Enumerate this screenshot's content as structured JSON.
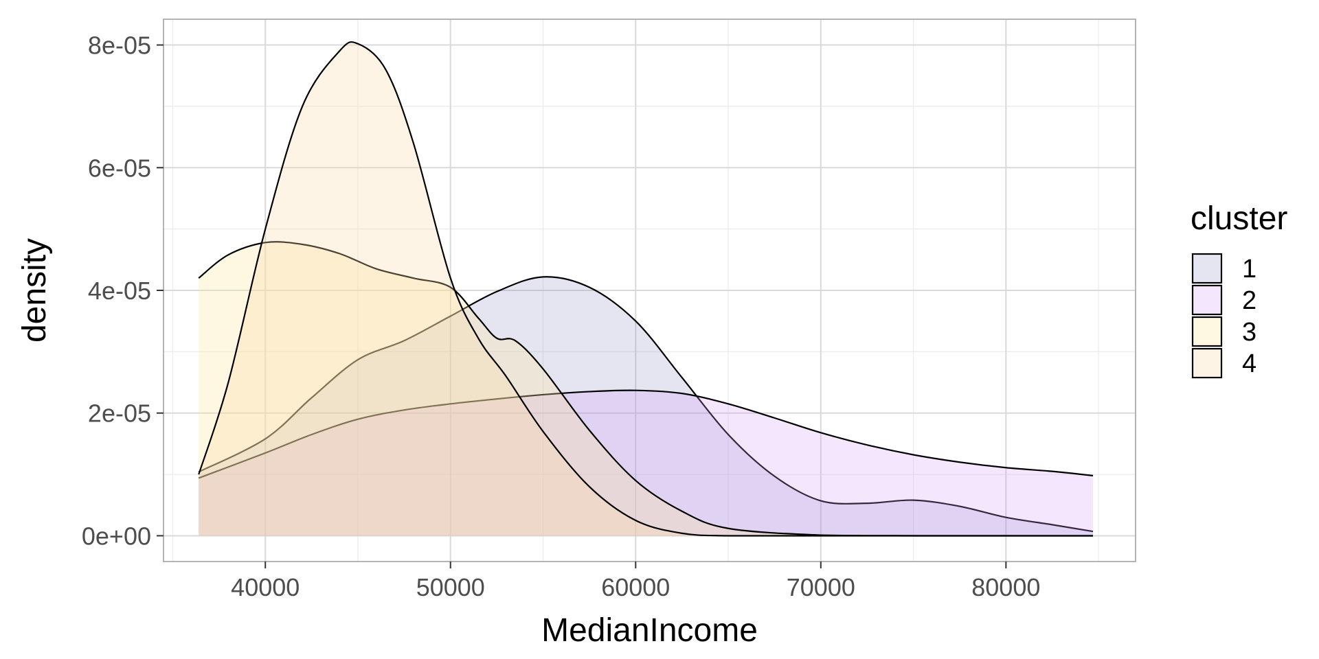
{
  "chart_data": {
    "type": "area",
    "subtype": "density",
    "xlabel": "MedianIncome",
    "ylabel": "density",
    "xlim": [
      34500,
      87000
    ],
    "ylim": [
      -4.2e-06,
      8.42e-05
    ],
    "x_ticks": [
      40000,
      50000,
      60000,
      70000,
      80000
    ],
    "x_tick_labels": [
      "40000",
      "50000",
      "60000",
      "70000",
      "80000"
    ],
    "y_ticks": [
      0,
      2e-05,
      4e-05,
      6e-05,
      8e-05
    ],
    "y_tick_labels": [
      "0e+00",
      "2e-05",
      "4e-05",
      "6e-05",
      "8e-05"
    ],
    "grid": true,
    "legend": {
      "title": "cluster",
      "position": "right",
      "entries": [
        "1",
        "2",
        "3",
        "4"
      ]
    },
    "series": [
      {
        "name": "1",
        "color": "#7b7fbf",
        "fill_opacity": 0.2,
        "points": [
          [
            36400,
            1.04e-05
          ],
          [
            40000,
            1.58e-05
          ],
          [
            42500,
            2.25e-05
          ],
          [
            45000,
            2.87e-05
          ],
          [
            47500,
            3.18e-05
          ],
          [
            50000,
            3.58e-05
          ],
          [
            52500,
            3.98e-05
          ],
          [
            55000,
            4.22e-05
          ],
          [
            57500,
            4.05e-05
          ],
          [
            60000,
            3.5e-05
          ],
          [
            62500,
            2.58e-05
          ],
          [
            65000,
            1.65e-05
          ],
          [
            67500,
            9.7e-06
          ],
          [
            70000,
            5.7e-06
          ],
          [
            72500,
            5.3e-06
          ],
          [
            75000,
            5.8e-06
          ],
          [
            77500,
            4.8e-06
          ],
          [
            80000,
            3e-06
          ],
          [
            82500,
            1.8e-06
          ],
          [
            84700,
            7e-07
          ]
        ]
      },
      {
        "name": "2",
        "color": "#d49cf5",
        "fill_opacity": 0.25,
        "points": [
          [
            36400,
            9.4e-06
          ],
          [
            40000,
            1.35e-05
          ],
          [
            42500,
            1.65e-05
          ],
          [
            45000,
            1.9e-05
          ],
          [
            47500,
            2.05e-05
          ],
          [
            50000,
            2.15e-05
          ],
          [
            52500,
            2.23e-05
          ],
          [
            55000,
            2.3e-05
          ],
          [
            57500,
            2.35e-05
          ],
          [
            60000,
            2.37e-05
          ],
          [
            62500,
            2.32e-05
          ],
          [
            65000,
            2.15e-05
          ],
          [
            67500,
            1.92e-05
          ],
          [
            70000,
            1.68e-05
          ],
          [
            72500,
            1.48e-05
          ],
          [
            75000,
            1.32e-05
          ],
          [
            77500,
            1.2e-05
          ],
          [
            80000,
            1.11e-05
          ],
          [
            82500,
            1.05e-05
          ],
          [
            84700,
            9.8e-06
          ]
        ]
      },
      {
        "name": "3",
        "color": "#fbe39c",
        "fill_opacity": 0.3,
        "points": [
          [
            36400,
            4.2e-05
          ],
          [
            38000,
            4.58e-05
          ],
          [
            40000,
            4.78e-05
          ],
          [
            42000,
            4.75e-05
          ],
          [
            44000,
            4.6e-05
          ],
          [
            46000,
            4.35e-05
          ],
          [
            48000,
            4.2e-05
          ],
          [
            50000,
            4.05e-05
          ],
          [
            51500,
            3.55e-05
          ],
          [
            52500,
            3.22e-05
          ],
          [
            53500,
            3.18e-05
          ],
          [
            55000,
            2.72e-05
          ],
          [
            57500,
            1.72e-05
          ],
          [
            60000,
            9e-06
          ],
          [
            62500,
            4e-06
          ],
          [
            65000,
            1.2e-06
          ],
          [
            70000,
            1e-07
          ],
          [
            75000,
            0.0
          ],
          [
            80000,
            0.0
          ],
          [
            84700,
            0.0
          ]
        ]
      },
      {
        "name": "4",
        "color": "#fdd9a8",
        "fill_opacity": 0.3,
        "points": [
          [
            36400,
            1e-05
          ],
          [
            38000,
            2.5e-05
          ],
          [
            40000,
            5e-05
          ],
          [
            42000,
            7e-05
          ],
          [
            44000,
            7.9e-05
          ],
          [
            45000,
            8.02e-05
          ],
          [
            46500,
            7.6e-05
          ],
          [
            48000,
            6.4e-05
          ],
          [
            50000,
            4.2e-05
          ],
          [
            51500,
            3.22e-05
          ],
          [
            53000,
            2.6e-05
          ],
          [
            55000,
            1.7e-05
          ],
          [
            57500,
            8e-06
          ],
          [
            60000,
            2.5e-06
          ],
          [
            62500,
            4e-07
          ],
          [
            65000,
            0.0
          ],
          [
            70000,
            0.0
          ],
          [
            75000,
            0.0
          ],
          [
            80000,
            0.0
          ],
          [
            84700,
            0.0
          ]
        ]
      }
    ]
  }
}
